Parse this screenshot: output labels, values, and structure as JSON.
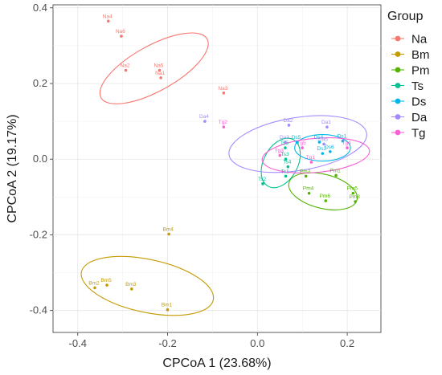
{
  "chart_data": {
    "type": "scatter",
    "xlabel": "CPCoA 1 (23.68%)",
    "ylabel": "CPCoA 2 (19.17%)",
    "xlim": [
      -0.455,
      0.275
    ],
    "ylim": [
      -0.458,
      0.408
    ],
    "x_ticks": [
      -0.4,
      -0.2,
      0.0,
      0.2
    ],
    "x_tick_labels": [
      "-0.4",
      "-0.2",
      "0.0",
      "0.2"
    ],
    "y_ticks": [
      -0.4,
      -0.2,
      0.0,
      0.2,
      0.4
    ],
    "y_tick_labels": [
      "-0.4",
      "-0.2",
      "0.0",
      "0.2",
      "0.4"
    ],
    "grid": true,
    "legend_title": "Group",
    "legend_position": "right",
    "series": [
      {
        "name": "Na",
        "color": "#F8766D",
        "ellipse": {
          "cx": -0.23,
          "cy": 0.24,
          "rx": 0.135,
          "ry": 0.06,
          "angle_deg": -29
        },
        "points": [
          {
            "label": "Na4",
            "x": -0.332,
            "y": 0.365
          },
          {
            "label": "Na6",
            "x": -0.303,
            "y": 0.325
          },
          {
            "label": "Na2",
            "x": -0.293,
            "y": 0.235
          },
          {
            "label": "Na5",
            "x": -0.218,
            "y": 0.235
          },
          {
            "label": "Na1",
            "x": -0.215,
            "y": 0.215
          },
          {
            "label": "Na3",
            "x": -0.075,
            "y": 0.175
          }
        ]
      },
      {
        "name": "Bm",
        "color": "#C49A00",
        "ellipse": {
          "cx": -0.245,
          "cy": -0.335,
          "rx": 0.15,
          "ry": 0.07,
          "angle_deg": 12
        },
        "points": [
          {
            "label": "Bm4",
            "x": -0.197,
            "y": -0.198
          },
          {
            "label": "Bm5",
            "x": -0.335,
            "y": -0.333
          },
          {
            "label": "Bm2",
            "x": -0.362,
            "y": -0.34
          },
          {
            "label": "Bm3",
            "x": -0.28,
            "y": -0.343
          },
          {
            "label": "Bm1",
            "x": -0.2,
            "y": -0.398
          }
        ]
      },
      {
        "name": "Pm",
        "color": "#53B400",
        "ellipse": {
          "cx": 0.146,
          "cy": -0.085,
          "rx": 0.078,
          "ry": 0.045,
          "angle_deg": 14
        },
        "points": [
          {
            "label": "Pm2",
            "x": 0.108,
            "y": -0.045
          },
          {
            "label": "Pm1",
            "x": 0.175,
            "y": -0.043
          },
          {
            "label": "Pm4",
            "x": 0.115,
            "y": -0.09
          },
          {
            "label": "Pm6",
            "x": 0.152,
            "y": -0.11
          },
          {
            "label": "Pm5",
            "x": 0.213,
            "y": -0.09
          },
          {
            "label": "Pm3",
            "x": 0.218,
            "y": -0.112
          }
        ]
      },
      {
        "name": "Ts",
        "color": "#00C094",
        "ellipse": {
          "cx": 0.052,
          "cy": -0.01,
          "rx": 0.038,
          "ry": 0.07,
          "angle_deg": 28
        },
        "points": [
          {
            "label": "Ts5",
            "x": 0.062,
            "y": 0.03
          },
          {
            "label": "Ts3",
            "x": 0.063,
            "y": 0.0
          },
          {
            "label": "Ts4",
            "x": 0.068,
            "y": -0.02
          },
          {
            "label": "Ts1",
            "x": 0.063,
            "y": -0.045
          },
          {
            "label": "Ts2",
            "x": 0.012,
            "y": -0.065
          }
        ]
      },
      {
        "name": "Ds",
        "color": "#00B6EB",
        "ellipse": {
          "cx": 0.145,
          "cy": 0.03,
          "rx": 0.062,
          "ry": 0.035,
          "angle_deg": 0
        },
        "points": [
          {
            "label": "Ds5",
            "x": 0.088,
            "y": 0.045
          },
          {
            "label": "Ds4",
            "x": 0.138,
            "y": 0.045
          },
          {
            "label": "Ds1",
            "x": 0.19,
            "y": 0.048
          },
          {
            "label": "Ds6",
            "x": 0.162,
            "y": 0.02
          },
          {
            "label": "Ds2",
            "x": 0.145,
            "y": 0.015
          }
        ]
      },
      {
        "name": "Da",
        "color": "#A58AFF",
        "ellipse": {
          "cx": 0.09,
          "cy": 0.04,
          "rx": 0.155,
          "ry": 0.07,
          "angle_deg": -9
        },
        "points": [
          {
            "label": "Da4",
            "x": -0.117,
            "y": 0.1
          },
          {
            "label": "Da1",
            "x": 0.155,
            "y": 0.085
          },
          {
            "label": "Da2",
            "x": 0.07,
            "y": 0.09
          },
          {
            "label": "Da3",
            "x": 0.062,
            "y": 0.045
          },
          {
            "label": "Da5",
            "x": 0.148,
            "y": 0.04
          }
        ]
      },
      {
        "name": "Tg",
        "color": "#FB61D7",
        "ellipse": {
          "cx": 0.13,
          "cy": 0.01,
          "rx": 0.12,
          "ry": 0.045,
          "angle_deg": -5
        },
        "points": [
          {
            "label": "Tg2",
            "x": -0.075,
            "y": 0.085
          },
          {
            "label": "Tg5",
            "x": 0.1,
            "y": 0.03
          },
          {
            "label": "Tg3",
            "x": 0.05,
            "y": 0.01
          },
          {
            "label": "Tg1",
            "x": 0.12,
            "y": -0.008
          },
          {
            "label": "Tg4",
            "x": 0.2,
            "y": 0.03
          }
        ]
      }
    ]
  }
}
